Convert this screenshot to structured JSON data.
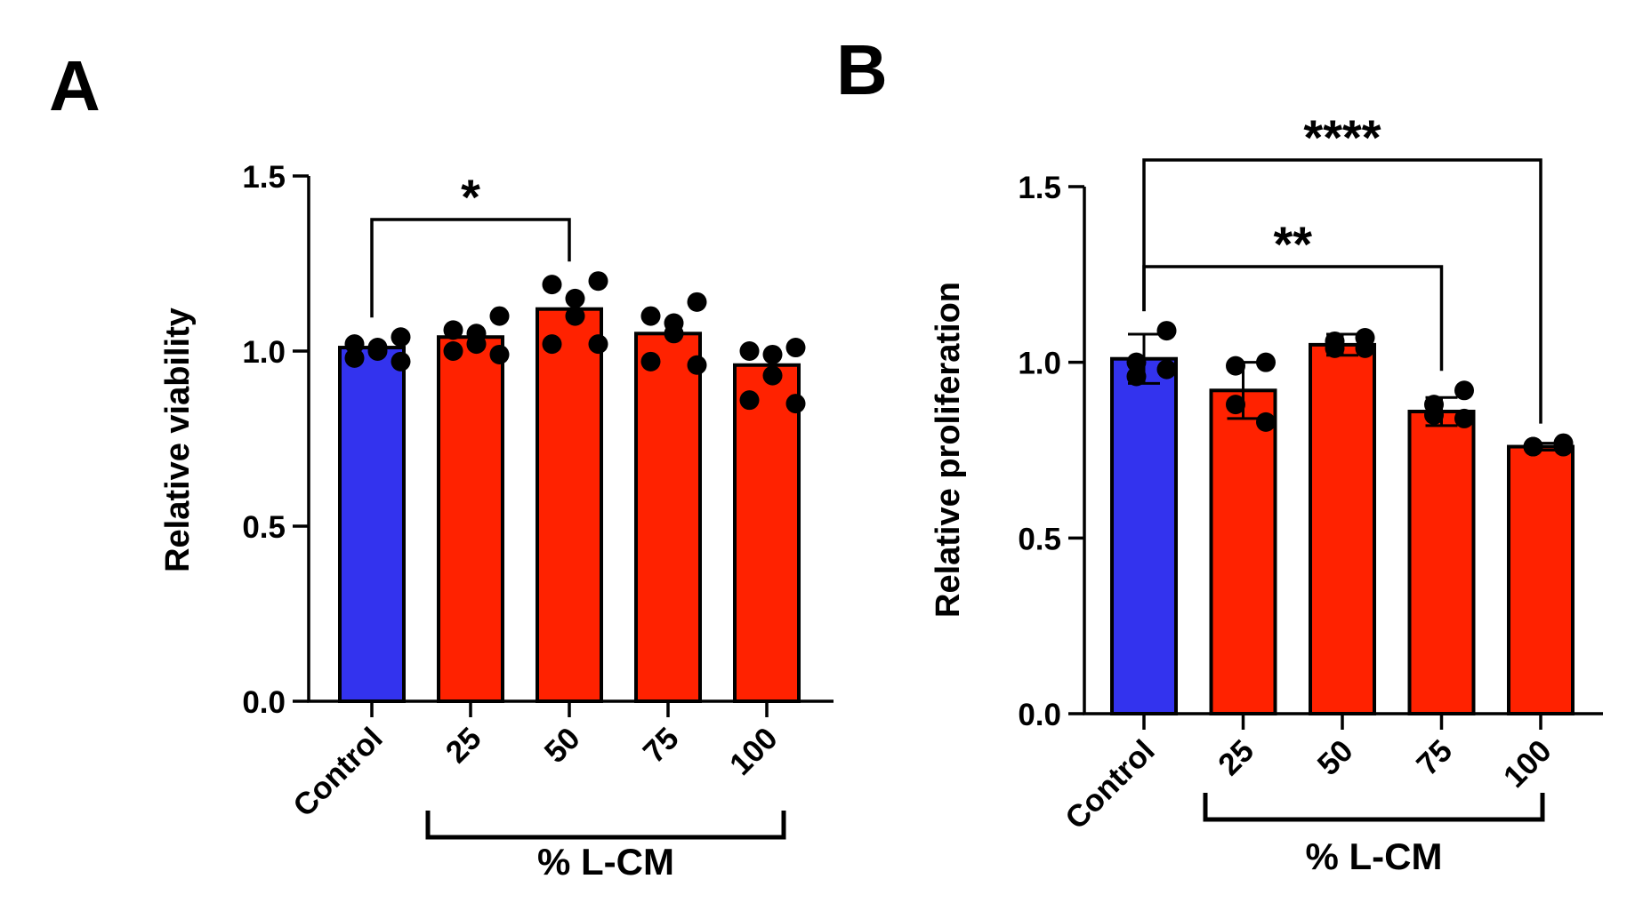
{
  "chart_data": [
    {
      "type": "bar",
      "panel": "A",
      "ylabel": "Relative viability",
      "categories": [
        "Control",
        "25",
        "50",
        "75",
        "100"
      ],
      "values": [
        1.01,
        1.04,
        1.12,
        1.05,
        0.96
      ],
      "colors": [
        "#3333ee",
        "#ff2200",
        "#ff2200",
        "#ff2200",
        "#ff2200"
      ],
      "points": [
        [
          1.04,
          1.02,
          1.01,
          1.0,
          0.98,
          0.97
        ],
        [
          1.1,
          1.06,
          1.05,
          1.02,
          1.0,
          0.99
        ],
        [
          1.2,
          1.19,
          1.15,
          1.1,
          1.02,
          1.02
        ],
        [
          1.14,
          1.1,
          1.08,
          1.05,
          0.97,
          0.96
        ],
        [
          1.01,
          1.0,
          0.99,
          0.93,
          0.86,
          0.85
        ]
      ],
      "ylim": [
        0,
        1.5
      ],
      "yticks": [
        {
          "value": 0,
          "label": "0.0"
        },
        0.5,
        {
          "value": 1,
          "label": "1.0"
        },
        1.5
      ],
      "annotations": [
        {
          "text": "*",
          "between": [
            "Control",
            "50"
          ]
        }
      ],
      "group_label": "% L-CM",
      "group": [
        "25",
        "100"
      ]
    },
    {
      "type": "bar",
      "panel": "B",
      "ylabel": "Relative proliferation",
      "categories": [
        "Control",
        "25",
        "50",
        "75",
        "100"
      ],
      "values": [
        1.01,
        0.92,
        1.05,
        0.86,
        0.76
      ],
      "errors": [
        0.07,
        0.08,
        0.03,
        0.04,
        0.01
      ],
      "colors": [
        "#3333ee",
        "#ff2200",
        "#ff2200",
        "#ff2200",
        "#ff2200"
      ],
      "points": [
        [
          1.09,
          1.0,
          0.96,
          0.98
        ],
        [
          1.0,
          0.99,
          0.88,
          0.83
        ],
        [
          1.07,
          1.06,
          1.04,
          1.04
        ],
        [
          0.92,
          0.88,
          0.85,
          0.84
        ],
        [
          0.77,
          0.76,
          0.76,
          0.76
        ]
      ],
      "ylim": [
        0,
        1.5
      ],
      "yticks": [
        {
          "value": 0,
          "label": "0.0"
        },
        0.5,
        {
          "value": 1,
          "label": "1.0"
        },
        1.5
      ],
      "annotations": [
        {
          "text": "****",
          "between": [
            "Control",
            "100"
          ]
        },
        {
          "text": "**",
          "between": [
            "Control",
            "75"
          ]
        }
      ],
      "group_label": "% L-CM",
      "group": [
        "25",
        "100"
      ]
    }
  ]
}
